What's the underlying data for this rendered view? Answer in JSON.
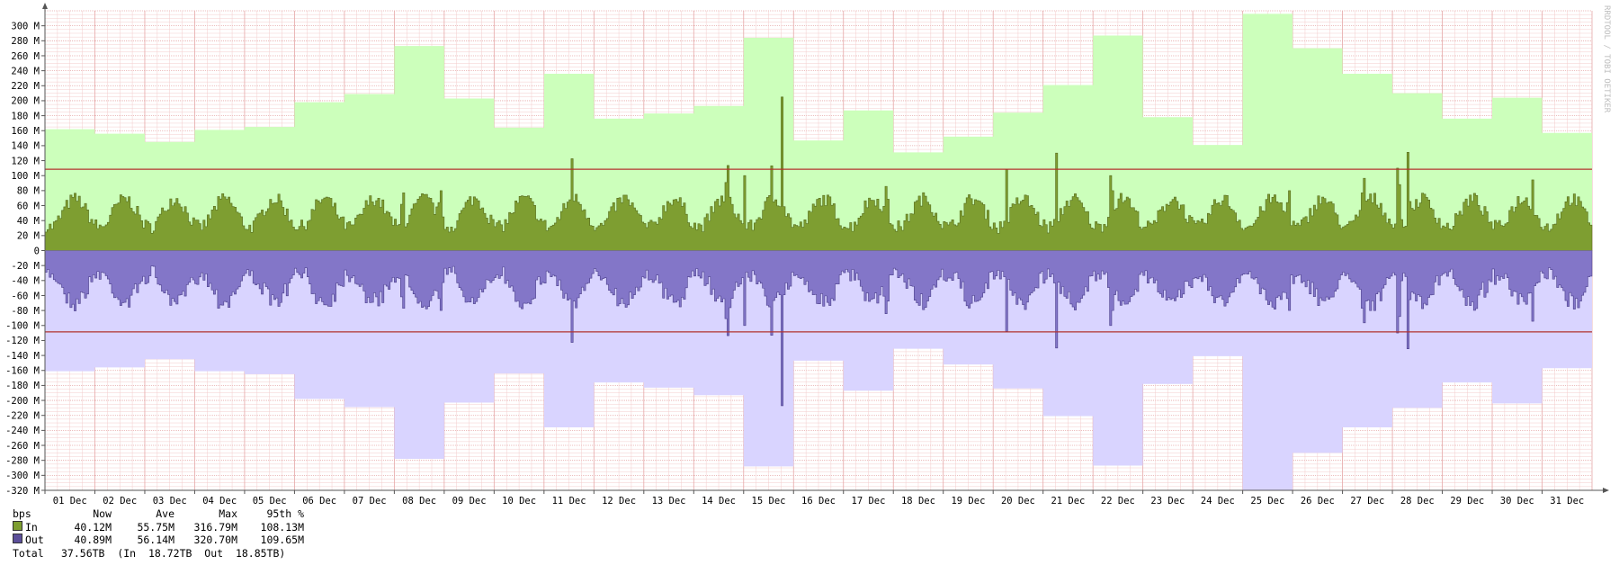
{
  "chart_data": {
    "type": "area",
    "unit": "bps",
    "y_ticks": [
      "300 M",
      "280 M",
      "260 M",
      "240 M",
      "220 M",
      "200 M",
      "180 M",
      "160 M",
      "140 M",
      "120 M",
      "100 M",
      "80 M",
      "60 M",
      "40 M",
      "20 M",
      "0",
      "-20 M",
      "-40 M",
      "-60 M",
      "-80 M",
      "-100 M",
      "-120 M",
      "-140 M",
      "-160 M",
      "-180 M",
      "-200 M",
      "-220 M",
      "-240 M",
      "-260 M",
      "-280 M",
      "-300 M",
      "-320 M"
    ],
    "ylim": [
      -320,
      320
    ],
    "x_labels": [
      "01 Dec",
      "02 Dec",
      "03 Dec",
      "04 Dec",
      "05 Dec",
      "06 Dec",
      "07 Dec",
      "08 Dec",
      "09 Dec",
      "10 Dec",
      "11 Dec",
      "12 Dec",
      "13 Dec",
      "14 Dec",
      "15 Dec",
      "16 Dec",
      "17 Dec",
      "18 Dec",
      "19 Dec",
      "20 Dec",
      "21 Dec",
      "22 Dec",
      "23 Dec",
      "24 Dec",
      "25 Dec",
      "26 Dec",
      "27 Dec",
      "28 Dec",
      "29 Dec",
      "30 Dec",
      "31 Dec"
    ],
    "percentile_95_M": 108.5,
    "watermark": "RRDTOOL / TOBI OETIKER",
    "colors": {
      "in_max_fill": "#ccffbb",
      "in_fill": "#7e9e31",
      "in_line": "#556b1c",
      "out_max_fill": "#d9d4ff",
      "out_fill": "#8376c8",
      "out_line": "#4b3f8a",
      "percentile_line": "#b3332f",
      "grid_minor": "#f3cccc",
      "grid_major": "#e6a8a8",
      "axis": "#555555"
    },
    "in_daily_max_M": [
      162,
      156,
      145,
      161,
      165,
      198,
      209,
      273,
      203,
      164,
      236,
      176,
      183,
      193,
      284,
      147,
      187,
      131,
      152,
      184,
      221,
      287,
      178,
      141,
      316,
      270,
      236,
      210,
      176,
      204,
      157
    ],
    "out_daily_max_M": [
      161,
      156,
      145,
      161,
      165,
      198,
      209,
      278,
      203,
      164,
      236,
      176,
      183,
      193,
      288,
      147,
      187,
      131,
      152,
      184,
      221,
      287,
      178,
      141,
      320,
      270,
      236,
      210,
      176,
      204,
      157
    ],
    "peaks": [
      {
        "day": 7.15,
        "in": 108,
        "out": 108
      },
      {
        "day": 7.9,
        "in": 112,
        "out": 112
      },
      {
        "day": 10.55,
        "in": 143,
        "out": 143
      },
      {
        "day": 13.65,
        "in": 159,
        "out": 159
      },
      {
        "day": 14.0,
        "in": 100,
        "out": 100
      },
      {
        "day": 14.75,
        "in": 205,
        "out": 207
      },
      {
        "day": 14.55,
        "in": 132,
        "out": 132
      },
      {
        "day": 16.85,
        "in": 120,
        "out": 118
      },
      {
        "day": 19.25,
        "in": 108,
        "out": 108
      },
      {
        "day": 20.25,
        "in": 130,
        "out": 130
      },
      {
        "day": 21.35,
        "in": 140,
        "out": 140
      },
      {
        "day": 21.65,
        "in": 100,
        "out": 100
      },
      {
        "day": 24.9,
        "in": 112,
        "out": 112
      },
      {
        "day": 26.4,
        "in": 135,
        "out": 135
      },
      {
        "day": 27.1,
        "in": 154,
        "out": 154
      },
      {
        "day": 27.3,
        "in": 153,
        "out": 153
      },
      {
        "day": 29.8,
        "in": 110,
        "out": 110
      }
    ]
  },
  "legend": {
    "header": [
      "bps",
      "Now",
      "Ave",
      "Max",
      "95th %"
    ],
    "rows": [
      {
        "name": "In",
        "color": "#7e9e31",
        "now": "40.12M",
        "ave": "55.75M",
        "max": "316.79M",
        "p95": "108.13M"
      },
      {
        "name": "Out",
        "color": "#5c4f9a",
        "now": "40.89M",
        "ave": "56.14M",
        "max": "320.70M",
        "p95": "109.65M"
      }
    ],
    "total_label": "Total",
    "total_value": "37.56TB",
    "in_label": "(In",
    "in_total": "18.72TB",
    "out_label": "Out",
    "out_total": "18.85TB)"
  }
}
